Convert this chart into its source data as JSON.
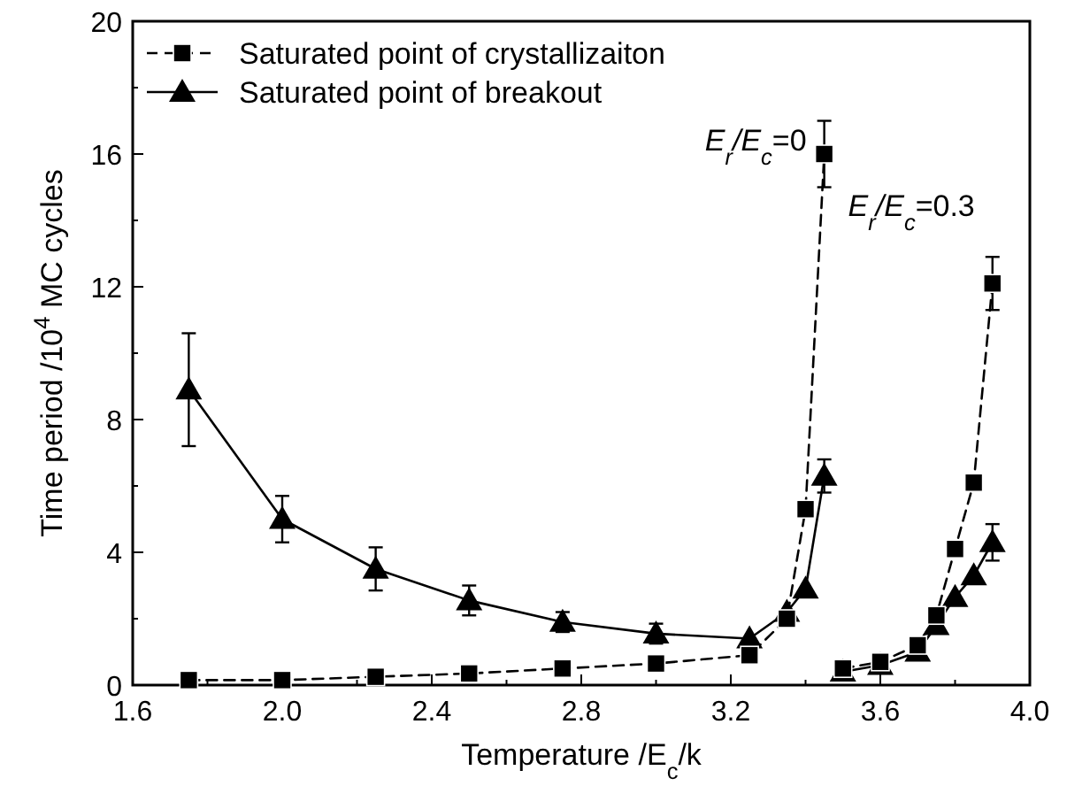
{
  "chart_data": {
    "type": "line",
    "xlabel": "Temperature /E$_{c}$/k",
    "ylabel": "Time period /10$^{4}$ MC cycles",
    "xlim": [
      1.6,
      4.0
    ],
    "ylim": [
      0,
      20
    ],
    "xticks": [
      1.6,
      {
        "value": 1.8,
        "label": null
      },
      "2.0",
      {
        "value": 2.2,
        "label": null
      },
      2.4,
      {
        "value": 2.6,
        "label": null
      },
      2.8,
      {
        "value": 3.0,
        "label": null
      },
      3.2,
      {
        "value": 3.4,
        "label": null
      },
      3.6,
      {
        "value": 3.8,
        "label": null
      },
      "4.0"
    ],
    "yticks": [
      0,
      {
        "value": 2,
        "label": null
      },
      4,
      {
        "value": 6,
        "label": null
      },
      8,
      {
        "value": 10,
        "label": null
      },
      12,
      {
        "value": 14,
        "label": null
      },
      16,
      {
        "value": 18,
        "label": null
      },
      20
    ],
    "legend": "top left",
    "grid": false,
    "series": [
      {
        "name": "Saturated point of crystallizaiton",
        "color": "#000000",
        "marker": "square",
        "line_style": "dashed",
        "x": [
          1.75,
          2.0,
          2.25,
          2.5,
          2.75,
          3.0,
          3.25,
          3.35,
          3.4,
          3.45
        ],
        "values": [
          0.15,
          0.15,
          0.25,
          0.35,
          0.5,
          0.65,
          0.9,
          2.0,
          5.3,
          16.0
        ],
        "errors": [
          null,
          null,
          null,
          null,
          null,
          null,
          null,
          null,
          null,
          1.0
        ]
      },
      {
        "name": "Saturated point of breakout",
        "color": "#000000",
        "marker": "triangle",
        "line_style": "solid",
        "x": [
          1.75,
          2.0,
          2.25,
          2.5,
          2.75,
          3.0,
          3.25,
          3.35,
          3.4,
          3.45
        ],
        "values": [
          8.9,
          5.0,
          3.5,
          2.55,
          1.9,
          1.55,
          1.4,
          2.2,
          2.9,
          6.3
        ],
        "errors": [
          1.7,
          0.7,
          0.65,
          0.45,
          0.3,
          0.3,
          null,
          null,
          null,
          0.5
        ]
      },
      {
        "color": "#000000",
        "marker": "square",
        "line_style": "dashed",
        "x": [
          3.5,
          3.6,
          3.7,
          3.75,
          3.8,
          3.85,
          3.9
        ],
        "values": [
          0.5,
          0.7,
          1.2,
          2.1,
          4.1,
          6.1,
          12.1
        ],
        "errors": [
          null,
          null,
          null,
          null,
          null,
          null,
          0.8
        ]
      },
      {
        "color": "#000000",
        "marker": "triangle",
        "line_style": "solid",
        "x": [
          3.5,
          3.6,
          3.7,
          3.75,
          3.8,
          3.85,
          3.9
        ],
        "values": [
          0.4,
          0.6,
          1.0,
          1.8,
          2.65,
          3.3,
          4.3
        ],
        "errors": [
          null,
          null,
          null,
          null,
          null,
          null,
          0.55
        ]
      }
    ],
    "annotations": [
      {
        "text": "E$_{r}$/E$_{c}$=0",
        "x": 3.45,
        "y": 16
      },
      {
        "text": "E$_{r}$/E$_{c}$=0.3",
        "x": 3.9,
        "y": 12.1
      }
    ]
  }
}
